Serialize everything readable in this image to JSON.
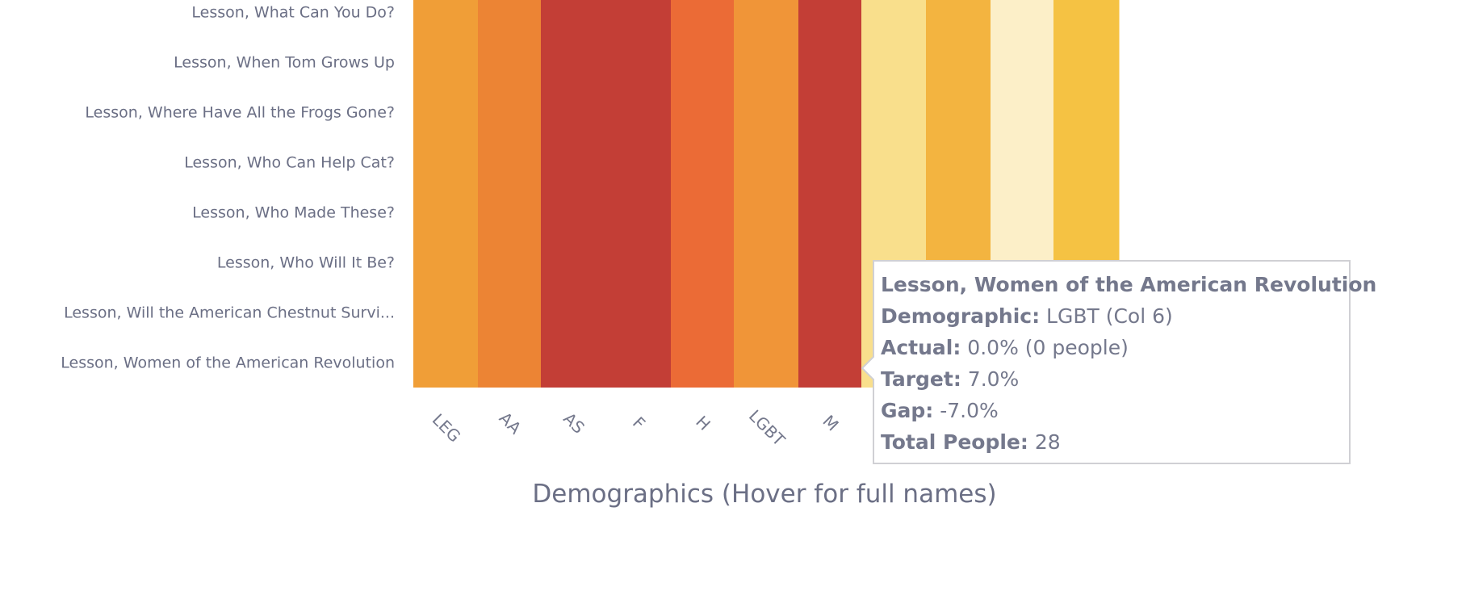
{
  "chart_data": {
    "type": "heatmap",
    "title": "",
    "xlabel": "Demographics (Hover for full names)",
    "ylabel": "",
    "rows": [
      "Lesson, What Can You Do?",
      "Lesson, When Tom Grows Up",
      "Lesson, Where Have All the Frogs Gone?",
      "Lesson, Who Can Help Cat?",
      "Lesson, Who Made These?",
      "Lesson, Who Will It Be?",
      "Lesson, Will the American Chestnut Survi...",
      "Lesson, Women of the American Revolution"
    ],
    "columns": [
      "LEG",
      "AA",
      "AS",
      "F",
      "H",
      "LGBT",
      "M",
      "",
      "",
      "",
      ""
    ],
    "column_colors": [
      "#f09e37",
      "#ec8434",
      "#c33e36",
      "#c33e36",
      "#eb6b36",
      "#f09538",
      "#c33e36",
      "#f9df8c",
      "#f3b440",
      "#fcefc8",
      "#f5c243"
    ],
    "grid": false
  },
  "tooltip": {
    "title": "Lesson, Women of the American Revolution",
    "lines": [
      {
        "label": "Demographic:",
        "value": "LGBT (Col 6)"
      },
      {
        "label": "Actual:",
        "value": "0.0% (0 people)"
      },
      {
        "label": "Target:",
        "value": "7.0%"
      },
      {
        "label": "Gap:",
        "value": "-7.0%"
      },
      {
        "label": "Total People:",
        "value": "28"
      }
    ]
  }
}
